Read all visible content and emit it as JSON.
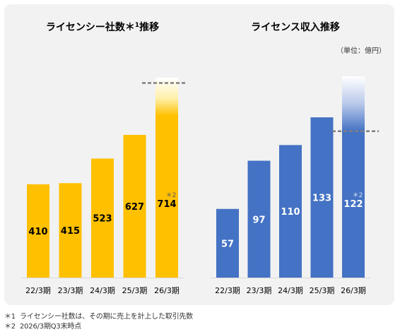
{
  "chart_data": [
    {
      "type": "bar",
      "title": "ライセンシー社数",
      "title_suffix": "＊",
      "title_note": "1",
      "title_tail": "推移",
      "categories": [
        "22/3期",
        "23/3期",
        "24/3期",
        "25/3期",
        "26/3期"
      ],
      "values": [
        410,
        415,
        523,
        627,
        714
      ],
      "data_labels": [
        "410",
        "415",
        "523",
        "627",
        "714"
      ],
      "ylim": [
        0,
        900
      ],
      "target_value": 855,
      "last_note": "＊2",
      "colors": {
        "bar": "#ffc000",
        "label": "#000000",
        "note": "#595959",
        "glow": "#fff2b0",
        "dash": "#7f7f7f"
      }
    },
    {
      "type": "bar",
      "title": "ライセンス収入推移",
      "unit": "（単位：億円）",
      "categories": [
        "22/3期",
        "23/3期",
        "24/3期",
        "25/3期",
        "26/3期"
      ],
      "values": [
        57,
        97,
        110,
        133,
        122
      ],
      "data_labels": [
        "57",
        "97",
        "110",
        "133",
        "122"
      ],
      "ylim": [
        0,
        170
      ],
      "target_value": 121.5,
      "last_note": "＊2",
      "colors": {
        "bar": "#4472c4",
        "label": "#ffffff",
        "note": "#dce6f5",
        "glow": "#ffffff",
        "dash": "#7f7f7f"
      }
    }
  ],
  "footnotes": [
    {
      "mark": "＊1",
      "text": "ライセンシー社数は、その期に売上を計上した取引先数"
    },
    {
      "mark": "＊2",
      "text": "2026/3期Q3末時点"
    }
  ]
}
